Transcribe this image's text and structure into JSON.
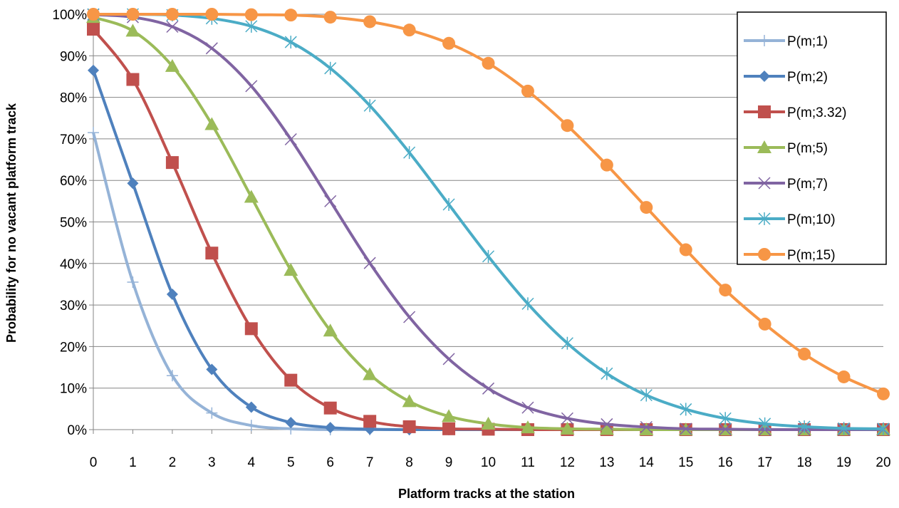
{
  "chart_data": {
    "type": "line",
    "title": "",
    "xlabel": "Platform tracks at the station",
    "ylabel": "Probability for no vacant  platform track",
    "xlim": [
      0,
      20
    ],
    "ylim": [
      0,
      100
    ],
    "x_ticks": [
      "0",
      "1",
      "2",
      "3",
      "4",
      "5",
      "6",
      "7",
      "8",
      "9",
      "10",
      "11",
      "12",
      "13",
      "14",
      "15",
      "16",
      "17",
      "18",
      "19",
      "20"
    ],
    "y_ticks": [
      "0%",
      "10%",
      "20%",
      "30%",
      "40%",
      "50%",
      "60%",
      "70%",
      "80%",
      "90%",
      "100%"
    ],
    "grid": "horizontal",
    "legend_position": "right",
    "x": [
      0,
      1,
      2,
      3,
      4,
      5,
      6,
      7,
      8,
      9,
      10,
      11,
      12,
      13,
      14,
      15,
      16,
      17,
      18,
      19,
      20
    ],
    "series": [
      {
        "name": "P(m;1)",
        "color": "#95b3d7",
        "marker": "plus",
        "values": [
          71.5,
          35.5,
          13,
          4,
          1,
          0.2,
          0,
          0,
          0,
          0,
          0,
          0,
          0,
          0,
          0,
          0,
          0,
          0,
          0,
          0,
          0
        ]
      },
      {
        "name": "P(m;2)",
        "color": "#4f81bd",
        "marker": "diamond",
        "values": [
          86.5,
          59.3,
          32.6,
          14.5,
          5.4,
          1.7,
          0.5,
          0.1,
          0,
          0,
          0,
          0,
          0,
          0,
          0,
          0,
          0,
          0,
          0,
          0,
          0
        ]
      },
      {
        "name": "P(m;3.32)",
        "color": "#c0504d",
        "marker": "square",
        "values": [
          96.4,
          84.3,
          64.3,
          42.5,
          24.3,
          11.9,
          5.2,
          2.0,
          0.7,
          0.2,
          0.1,
          0,
          0,
          0,
          0,
          0,
          0,
          0,
          0,
          0,
          0
        ]
      },
      {
        "name": "P(m;5)",
        "color": "#9bbb59",
        "marker": "triangle",
        "values": [
          99.3,
          96.0,
          87.5,
          73.5,
          56.0,
          38.4,
          23.8,
          13.3,
          6.8,
          3.2,
          1.4,
          0.5,
          0.2,
          0.1,
          0,
          0,
          0,
          0,
          0,
          0,
          0
        ]
      },
      {
        "name": "P(m;7)",
        "color": "#8064a2",
        "marker": "x",
        "values": [
          99.9,
          99.3,
          97.0,
          91.8,
          82.7,
          69.9,
          55.0,
          40.1,
          27.1,
          17.0,
          9.9,
          5.3,
          2.7,
          1.3,
          0.6,
          0.2,
          0.1,
          0,
          0,
          0,
          0
        ]
      },
      {
        "name": "P(m;10)",
        "color": "#4bacc6",
        "marker": "star",
        "values": [
          100,
          100,
          99.8,
          99.0,
          97.1,
          93.3,
          87.0,
          78.0,
          66.7,
          54.2,
          41.7,
          30.3,
          20.8,
          13.5,
          8.3,
          4.9,
          2.7,
          1.4,
          0.7,
          0.3,
          0.2
        ]
      },
      {
        "name": "P(m;15)",
        "color": "#f79646",
        "marker": "circle",
        "values": [
          100,
          100,
          100,
          100,
          99.9,
          99.8,
          99.3,
          98.2,
          96.2,
          93.0,
          88.2,
          81.5,
          73.2,
          63.7,
          53.5,
          43.3,
          33.6,
          25.4,
          18.2,
          12.7,
          8.6
        ]
      }
    ]
  }
}
